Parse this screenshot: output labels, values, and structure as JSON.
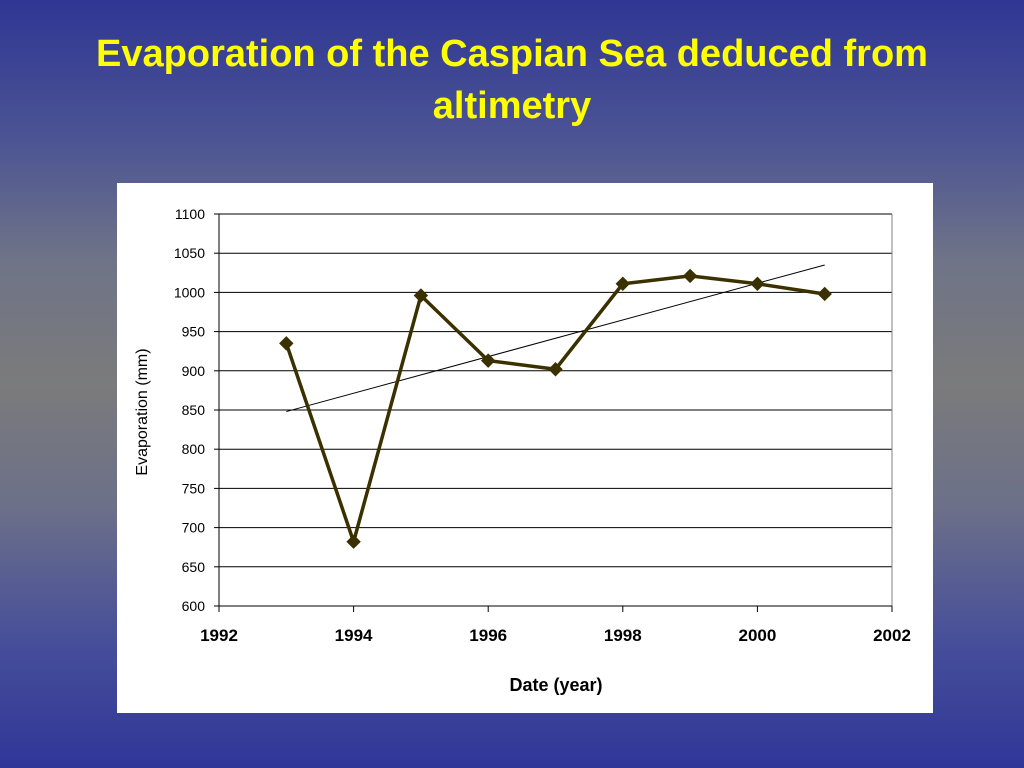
{
  "slide": {
    "title_line1": "Evaporation of the Caspian Sea deduced from",
    "title_line2": "altimetry",
    "title_color": "#ffff00"
  },
  "chart_data": {
    "type": "line",
    "xlabel": "Date (year)",
    "ylabel": "Evaporation (mm)",
    "xlim": [
      1992,
      2002
    ],
    "ylim": [
      600,
      1100
    ],
    "x_ticks": [
      "1992",
      "1994",
      "1996",
      "1998",
      "2000",
      "2002"
    ],
    "y_ticks": [
      "600",
      "650",
      "700",
      "750",
      "800",
      "850",
      "900",
      "950",
      "1000",
      "1050",
      "1100"
    ],
    "grid": "horizontal",
    "legend": "none",
    "series": [
      {
        "x": [
          1993,
          1994,
          1995,
          1996,
          1997,
          1998,
          1999,
          2000,
          2001
        ],
        "values": [
          935,
          682,
          996,
          913,
          902,
          1011,
          1021,
          1011,
          998
        ],
        "color": "#3b3000",
        "marker": "diamond"
      }
    ],
    "trendline": {
      "x": [
        1993,
        2001
      ],
      "values": [
        848,
        1035
      ],
      "color": "#000000"
    }
  }
}
